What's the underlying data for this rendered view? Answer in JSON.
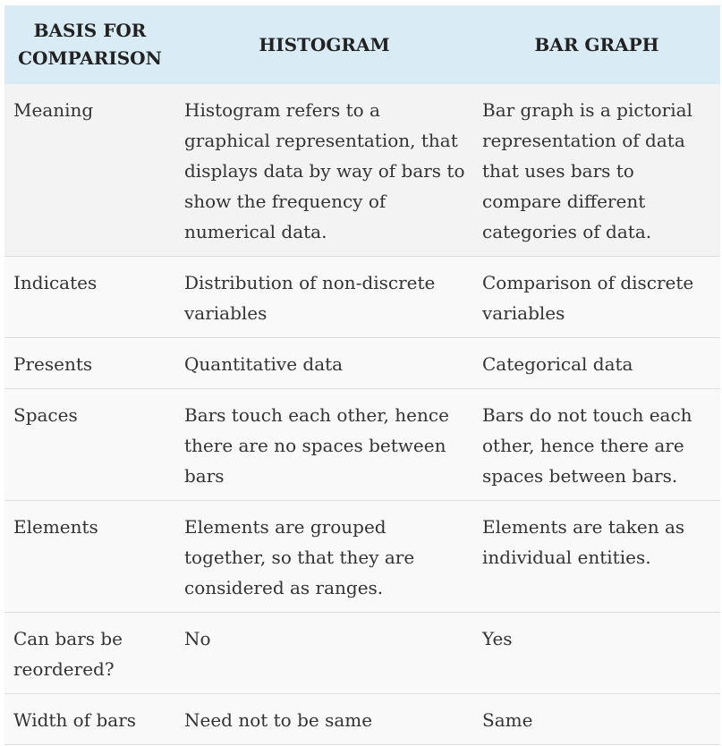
{
  "header": {
    "col1": "BASIS FOR COMPARISON",
    "col1_line1": "BASIS FOR",
    "col1_line2": "COMPARISON",
    "col2": "HISTOGRAM",
    "col3": "BAR GRAPH"
  },
  "rows": [
    {
      "basis": "Meaning",
      "histogram": "Histogram refers to a graphical representation, that displays data by way of bars to show the frequency of numerical data.",
      "bar_graph": "Bar graph is a pictorial representation of data that uses bars to compare different categories of data."
    },
    {
      "basis": "Indicates",
      "histogram": "Distribution of non-discrete variables",
      "bar_graph": "Comparison of discrete variables"
    },
    {
      "basis": "Presents",
      "histogram": "Quantitative data",
      "bar_graph": "Categorical data"
    },
    {
      "basis": "Spaces",
      "histogram": "Bars touch each other, hence there are no spaces between bars",
      "bar_graph": "Bars do not touch each other, hence there are spaces between bars."
    },
    {
      "basis": "Elements",
      "histogram": "Elements are grouped together, so that they are considered as ranges.",
      "bar_graph": "Elements are taken as individual entities."
    },
    {
      "basis": "Can bars be reordered?",
      "histogram": "No",
      "bar_graph": "Yes"
    },
    {
      "basis": "Width of bars",
      "histogram": "Need not to be same",
      "bar_graph": "Same"
    }
  ],
  "colors": {
    "header_bg": "#d9ecf5",
    "row_odd_bg": "#f3f3f3",
    "row_even_bg": "#f9f9f9",
    "text": "#333333"
  }
}
